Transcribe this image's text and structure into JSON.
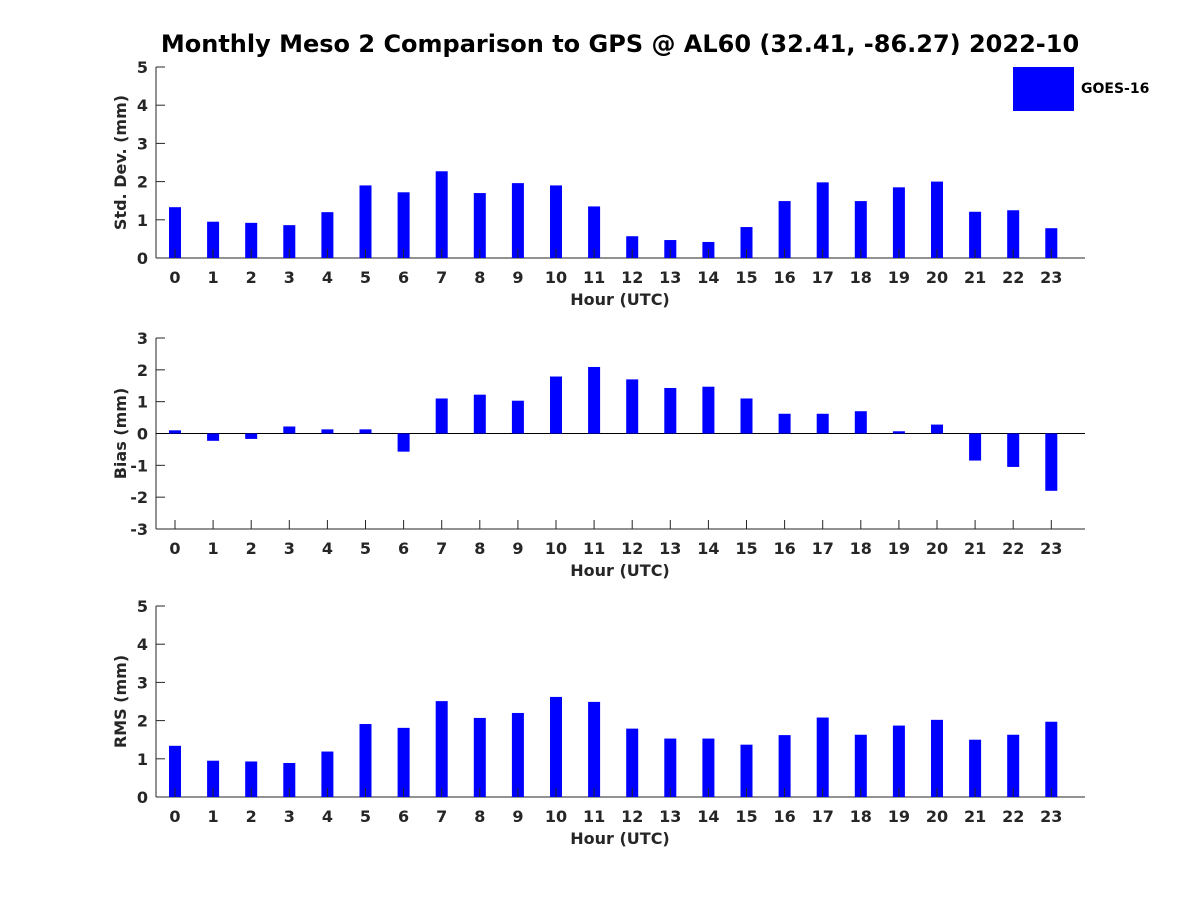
{
  "title": "Monthly Meso 2 Comparison to GPS @ AL60 (32.41, -86.27) 2022-10",
  "legend": {
    "label": "GOES-16",
    "color": "#0000ff"
  },
  "chart_data": [
    {
      "type": "bar",
      "categories": [
        "0",
        "1",
        "2",
        "3",
        "4",
        "5",
        "6",
        "7",
        "8",
        "9",
        "10",
        "11",
        "12",
        "13",
        "14",
        "15",
        "16",
        "17",
        "18",
        "19",
        "20",
        "21",
        "22",
        "23"
      ],
      "series": [
        {
          "name": "GOES-16",
          "values": [
            1.33,
            0.95,
            0.92,
            0.86,
            1.2,
            1.9,
            1.72,
            2.27,
            1.7,
            1.96,
            1.9,
            1.35,
            0.57,
            0.47,
            0.42,
            0.81,
            1.49,
            1.98,
            1.49,
            1.85,
            2.0,
            1.21,
            1.25,
            0.78
          ]
        }
      ],
      "xlabel": "Hour (UTC)",
      "ylabel": "Std. Dev. (mm)",
      "ylim": [
        0,
        5
      ],
      "yticks": [
        "0",
        "1",
        "2",
        "3",
        "4",
        "5"
      ],
      "color": "#0000ff"
    },
    {
      "type": "bar",
      "categories": [
        "0",
        "1",
        "2",
        "3",
        "4",
        "5",
        "6",
        "7",
        "8",
        "9",
        "10",
        "11",
        "12",
        "13",
        "14",
        "15",
        "16",
        "17",
        "18",
        "19",
        "20",
        "21",
        "22",
        "23"
      ],
      "series": [
        {
          "name": "GOES-16",
          "values": [
            0.1,
            -0.23,
            -0.17,
            0.22,
            0.13,
            0.13,
            -0.57,
            1.1,
            1.22,
            1.03,
            1.79,
            2.09,
            1.7,
            1.43,
            1.47,
            1.1,
            0.62,
            0.62,
            0.7,
            0.07,
            0.28,
            -0.85,
            -1.05,
            -1.8
          ]
        }
      ],
      "xlabel": "Hour (UTC)",
      "ylabel": "Bias (mm)",
      "ylim": [
        -3,
        3
      ],
      "yticks": [
        "-3",
        "-2",
        "-1",
        "0",
        "1",
        "2",
        "3"
      ],
      "zero_line": true,
      "color": "#0000ff"
    },
    {
      "type": "bar",
      "categories": [
        "0",
        "1",
        "2",
        "3",
        "4",
        "5",
        "6",
        "7",
        "8",
        "9",
        "10",
        "11",
        "12",
        "13",
        "14",
        "15",
        "16",
        "17",
        "18",
        "19",
        "20",
        "21",
        "22",
        "23"
      ],
      "series": [
        {
          "name": "GOES-16",
          "values": [
            1.34,
            0.95,
            0.93,
            0.89,
            1.19,
            1.91,
            1.81,
            2.51,
            2.07,
            2.2,
            2.62,
            2.49,
            1.79,
            1.53,
            1.53,
            1.37,
            1.62,
            2.08,
            1.63,
            1.87,
            2.02,
            1.5,
            1.63,
            1.97
          ]
        }
      ],
      "xlabel": "Hour (UTC)",
      "ylabel": "RMS (mm)",
      "ylim": [
        0,
        5
      ],
      "yticks": [
        "0",
        "1",
        "2",
        "3",
        "4",
        "5"
      ],
      "color": "#0000ff"
    }
  ]
}
